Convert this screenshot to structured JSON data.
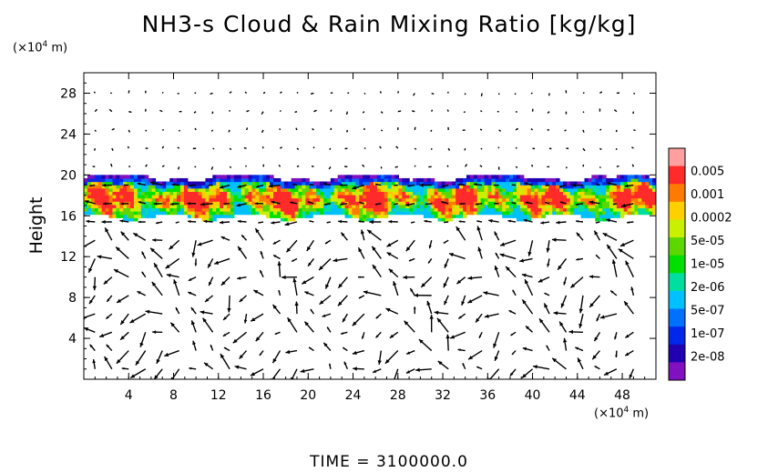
{
  "title": "NH3-s Cloud & Rain Mixing Ratio [kg/kg]",
  "y_unit": {
    "prefix": "(×10",
    "exp": "4",
    "suffix": " m)"
  },
  "x_unit": {
    "prefix": "(×10",
    "exp": "4",
    "suffix": " m)"
  },
  "time_label": "TIME  =  3100000.0",
  "chart_data": {
    "type": "heatmap",
    "title": "NH3-s Cloud & Rain Mixing Ratio [kg/kg]",
    "ylabel": "Height",
    "xlim": [
      0,
      51
    ],
    "ylim": [
      0,
      30
    ],
    "x_ticks": [
      4,
      8,
      12,
      16,
      20,
      24,
      28,
      32,
      36,
      40,
      44,
      48
    ],
    "y_ticks": [
      4,
      8,
      12,
      16,
      20,
      24,
      28
    ],
    "cloud_layer": {
      "bottom": 15.5,
      "top": 20
    },
    "colorbar": {
      "labels": [
        "0.005",
        "0.001",
        "0.0002",
        "5e-05",
        "1e-05",
        "2e-06",
        "5e-07",
        "1e-07",
        "2e-08"
      ],
      "colors": [
        "#ff9f9f",
        "#ff2a2a",
        "#ff7a00",
        "#ffd000",
        "#c8f000",
        "#5cd800",
        "#00e000",
        "#00dfa0",
        "#00c0ff",
        "#0070ff",
        "#0028e8",
        "#2000b0",
        "#8010c0"
      ]
    },
    "vector_field": "wind arrows overlay"
  }
}
